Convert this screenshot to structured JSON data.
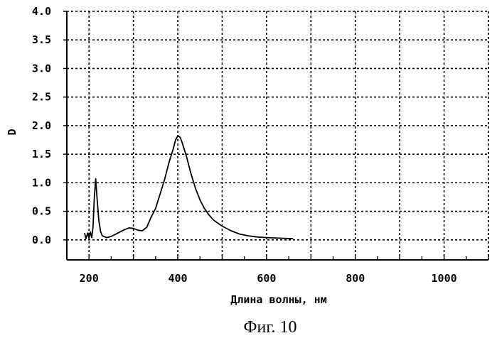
{
  "chart_data": {
    "type": "line",
    "xlabel": "Длина волны, нм",
    "ylabel": "D",
    "xlim": [
      150,
      1100
    ],
    "ylim": [
      -0.35,
      4.0
    ],
    "x_ticks": [
      200,
      400,
      600,
      800,
      1000
    ],
    "x_tick_labels": [
      "200",
      "400",
      "600",
      "800",
      "1000"
    ],
    "y_ticks": [
      0.0,
      0.5,
      1.0,
      1.5,
      2.0,
      2.5,
      3.0,
      3.5,
      4.0
    ],
    "y_tick_labels": [
      "0.0",
      "0.5",
      "1.0",
      "1.5",
      "2.0",
      "2.5",
      "3.0",
      "3.5",
      "4.0"
    ],
    "grid": true,
    "series": [
      {
        "x": [
          190,
          193,
          197,
          200,
          203,
          206,
          209,
          212,
          215,
          218,
          222,
          226,
          230,
          240,
          250,
          260,
          270,
          280,
          290,
          300,
          310,
          320,
          330,
          340,
          350,
          360,
          370,
          380,
          390,
          395,
          400,
          405,
          410,
          420,
          430,
          440,
          450,
          460,
          470,
          480,
          500,
          520,
          540,
          560,
          580,
          600,
          630,
          660
        ],
        "y": [
          0.12,
          0.02,
          0.12,
          0.03,
          0.14,
          0.04,
          0.22,
          0.75,
          1.07,
          0.75,
          0.35,
          0.15,
          0.07,
          0.04,
          0.06,
          0.1,
          0.14,
          0.18,
          0.21,
          0.2,
          0.17,
          0.16,
          0.22,
          0.4,
          0.55,
          0.8,
          1.05,
          1.35,
          1.6,
          1.75,
          1.82,
          1.8,
          1.7,
          1.45,
          1.15,
          0.9,
          0.7,
          0.55,
          0.44,
          0.35,
          0.24,
          0.16,
          0.1,
          0.07,
          0.05,
          0.04,
          0.03,
          0.02
        ]
      }
    ]
  },
  "figure": {
    "caption": "Фиг. 10"
  }
}
